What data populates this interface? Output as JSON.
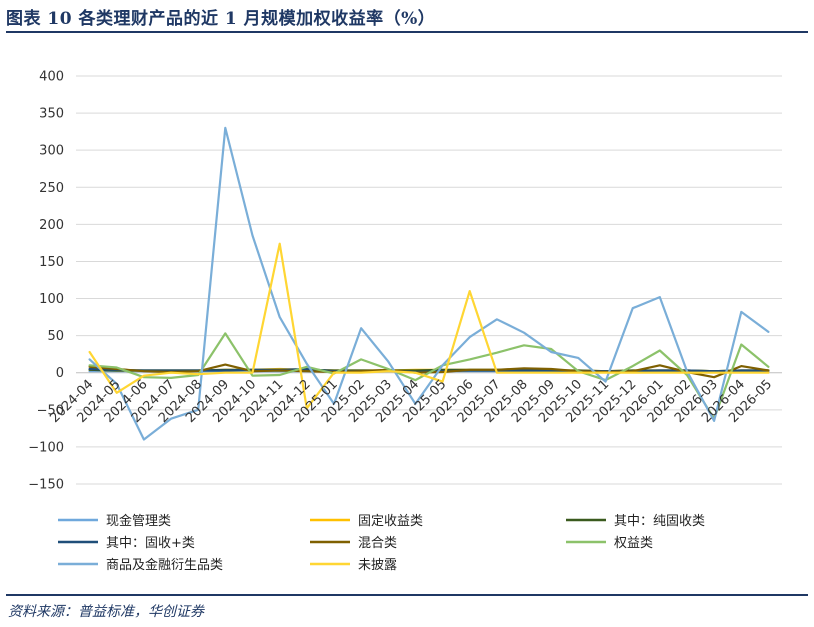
{
  "header": {
    "title": "图表 10   各类理财产品的近 1 月规模加权收益率（%）"
  },
  "footer": {
    "source": "资料来源：普益标准，华创证券"
  },
  "colors": {
    "frame": "#1f3864",
    "grid": "#d9d9d9",
    "axis": "#bfbfbf"
  },
  "chart_data": {
    "type": "line",
    "title": "各类理财产品的近 1 月规模加权收益率（%）",
    "xlabel": "",
    "ylabel": "",
    "ylim": [
      -150,
      400
    ],
    "yticks": [
      400,
      350,
      300,
      250,
      200,
      150,
      100,
      50,
      0,
      -50,
      -100,
      -150
    ],
    "grid": true,
    "legend_position": "bottom",
    "categories": [
      "2024-04",
      "2024-05",
      "2024-06",
      "2024-07",
      "2024-08",
      "2024-09",
      "2024-10",
      "2024-11",
      "2024-12",
      "2025-01",
      "2025-02",
      "2025-03",
      "2025-04",
      "2025-05",
      "2025-06",
      "2025-07",
      "2025-08",
      "2025-09",
      "2025-10",
      "2025-11",
      "2025-12",
      "2026-01",
      "2026-02",
      "2026-03",
      "2026-04",
      "2026-05"
    ],
    "series": [
      {
        "name": "现金管理类",
        "color": "#6fa8dc",
        "values": [
          2,
          2,
          2,
          2,
          2,
          2,
          2,
          2,
          2,
          2,
          2,
          2,
          2,
          2,
          2,
          2,
          2,
          2,
          2,
          2,
          2,
          2,
          2,
          2,
          2,
          2
        ]
      },
      {
        "name": "固定收益类",
        "color": "#ffc000",
        "values": [
          4,
          3,
          3,
          3,
          3,
          4,
          4,
          5,
          4,
          3,
          3,
          3,
          4,
          4,
          4,
          4,
          4,
          3,
          3,
          2,
          3,
          3,
          3,
          2,
          3,
          3
        ]
      },
      {
        "name": "其中：纯固收类",
        "color": "#3a5a1e",
        "values": [
          4,
          3,
          3,
          3,
          3,
          4,
          4,
          4,
          4,
          3,
          3,
          3,
          3,
          4,
          4,
          4,
          4,
          3,
          3,
          2,
          3,
          3,
          3,
          2,
          3,
          3
        ]
      },
      {
        "name": "其中：固收+类",
        "color": "#1f4e79",
        "values": [
          5,
          4,
          3,
          3,
          3,
          3,
          4,
          4,
          5,
          2,
          2,
          3,
          1,
          2,
          3,
          3,
          3,
          3,
          2,
          2,
          2,
          3,
          3,
          2,
          3,
          3
        ]
      },
      {
        "name": "混合类",
        "color": "#7f6000",
        "values": [
          8,
          5,
          2,
          1,
          2,
          11,
          2,
          3,
          2,
          1,
          2,
          4,
          0,
          1,
          4,
          4,
          6,
          5,
          2,
          1,
          2,
          10,
          1,
          -6,
          9,
          3
        ]
      },
      {
        "name": "权益类",
        "color": "#8cc26a",
        "values": [
          10,
          7,
          -6,
          -7,
          -3,
          53,
          -4,
          -3,
          8,
          -1,
          18,
          5,
          -10,
          10,
          18,
          27,
          37,
          32,
          2,
          -10,
          9,
          30,
          -3,
          -62,
          38,
          8
        ]
      },
      {
        "name": "商品及金融衍生品类",
        "color": "#7aaed8",
        "values": [
          18,
          -15,
          -90,
          -62,
          -50,
          330,
          185,
          75,
          12,
          -42,
          60,
          15,
          -42,
          10,
          48,
          72,
          54,
          28,
          20,
          -12,
          87,
          102,
          2,
          -65,
          82,
          55
        ]
      },
      {
        "name": "未披露",
        "color": "#ffd633",
        "values": [
          28,
          -27,
          -4,
          0,
          -2,
          0,
          0,
          174,
          -48,
          0,
          0,
          2,
          0,
          -12,
          110,
          0,
          0,
          0,
          0,
          0,
          0,
          0,
          0,
          0,
          0,
          0
        ]
      }
    ]
  }
}
